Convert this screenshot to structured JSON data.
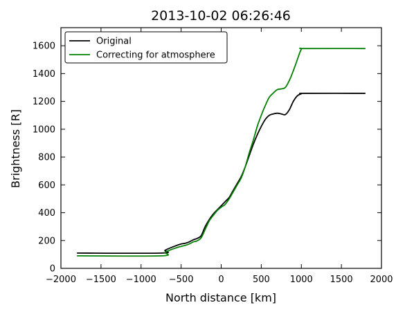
{
  "chart_data": {
    "type": "line",
    "title": "2013-10-02 06:26:46",
    "xlabel": "North distance [km]",
    "ylabel": "Brightness [R]",
    "xlim": [
      -2000,
      2000
    ],
    "ylim": [
      0,
      1730
    ],
    "xticks": [
      -2000,
      -1500,
      -1000,
      -500,
      0,
      500,
      1000,
      1500,
      2000
    ],
    "yticks": [
      0,
      200,
      400,
      600,
      800,
      1000,
      1200,
      1400,
      1600
    ],
    "legend_position": "top-left",
    "grid": false,
    "series": [
      {
        "name": "Original",
        "color": "#000000",
        "x": [
          -1800,
          -750,
          -700,
          -600,
          -500,
          -450,
          -400,
          -350,
          -300,
          -250,
          -200,
          -150,
          -100,
          -50,
          0,
          50,
          100,
          150,
          200,
          250,
          300,
          350,
          400,
          450,
          500,
          550,
          600,
          650,
          700,
          750,
          800,
          850,
          900,
          950,
          1000,
          1050,
          1800
        ],
        "y": [
          110,
          110,
          130,
          155,
          175,
          180,
          190,
          205,
          215,
          235,
          300,
          350,
          390,
          420,
          450,
          480,
          510,
          560,
          610,
          660,
          730,
          810,
          890,
          960,
          1020,
          1070,
          1100,
          1110,
          1115,
          1110,
          1105,
          1140,
          1200,
          1240,
          1255,
          1258,
          1258
        ]
      },
      {
        "name": "Correcting for atmosphere",
        "color": "#008000",
        "x": [
          -1800,
          -750,
          -700,
          -600,
          -500,
          -450,
          -400,
          -350,
          -300,
          -250,
          -200,
          -150,
          -100,
          -50,
          0,
          50,
          100,
          150,
          200,
          250,
          300,
          350,
          400,
          450,
          500,
          550,
          600,
          650,
          700,
          750,
          800,
          850,
          900,
          950,
          1000,
          1050,
          1800
        ],
        "y": [
          90,
          90,
          115,
          140,
          158,
          165,
          175,
          190,
          198,
          220,
          280,
          340,
          380,
          415,
          440,
          460,
          500,
          550,
          600,
          650,
          730,
          830,
          920,
          1020,
          1100,
          1170,
          1230,
          1260,
          1285,
          1290,
          1300,
          1350,
          1420,
          1500,
          1575,
          1580,
          1580
        ]
      }
    ]
  }
}
